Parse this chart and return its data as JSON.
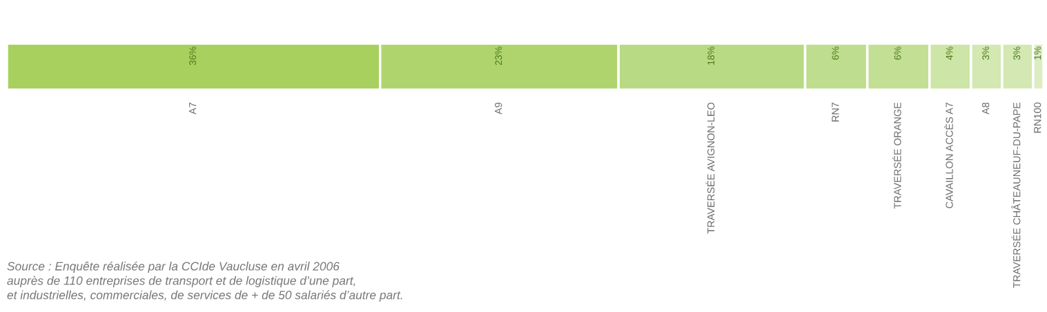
{
  "chart_data": {
    "type": "bar",
    "stacked": true,
    "orientation": "horizontal",
    "categories": [
      null
    ],
    "series": [
      {
        "name": "A7",
        "color": "#a8d05f",
        "values": [
          36
        ],
        "value_labels": [
          "36%"
        ]
      },
      {
        "name": "A9",
        "color": "#afd46d",
        "values": [
          23
        ],
        "value_labels": [
          "23%"
        ]
      },
      {
        "name": "TRAVERSÉE AVIGNON-LEO",
        "color": "#b8da84",
        "values": [
          18
        ],
        "value_labels": [
          "18%"
        ]
      },
      {
        "name": "RN7",
        "color": "#bfdd8f",
        "values": [
          6
        ],
        "value_labels": [
          "6%"
        ]
      },
      {
        "name": "TRAVERSÉE ORANGE",
        "color": "#c3df94",
        "values": [
          6
        ],
        "value_labels": [
          "6%"
        ]
      },
      {
        "name": "CAVAILLON ACCÈS A7",
        "color": "#cde5a6",
        "values": [
          4
        ],
        "value_labels": [
          "4%"
        ]
      },
      {
        "name": "A8",
        "color": "#d3e8b2",
        "values": [
          3
        ],
        "value_labels": [
          "3%"
        ]
      },
      {
        "name": "TRAVERSÉE CHÂTEAUNEUF-DU-PAPE",
        "color": "#d3e8b2",
        "values": [
          3
        ],
        "value_labels": [
          "3%"
        ]
      },
      {
        "name": "RN100",
        "color": "#dcecc3",
        "values": [
          1
        ],
        "value_labels": [
          "1%"
        ]
      }
    ],
    "annotations": [
      "Source : Enquête réalisée par la CCIde Vaucluse en avril 2006\nauprès de 110 entreprises de transport et de logistique d’une part,\net industrielles, commerciales, de services de + de 50 salariés d’autre part."
    ]
  }
}
